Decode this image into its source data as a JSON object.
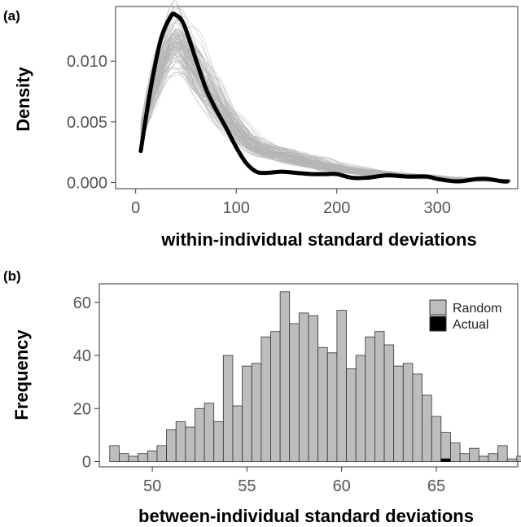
{
  "chart_data": [
    {
      "panel": "(a)",
      "type": "line",
      "xlabel": "within-individual standard deviations",
      "ylabel": "Density",
      "xlim": [
        -20,
        380
      ],
      "ylim": [
        -0.0005,
        0.0145
      ],
      "xticks": [
        0,
        100,
        200,
        300
      ],
      "xtick_labels": [
        "0",
        "100",
        "200",
        "300"
      ],
      "yticks": [
        0.0,
        0.005,
        0.01
      ],
      "ytick_labels": [
        "0.000",
        "0.005",
        "0.010"
      ],
      "grid": false,
      "colors": {
        "random": "#b4b4b4",
        "actual": "#000000"
      },
      "series": [
        {
          "role": "random-density-curves",
          "count": 100,
          "x": [
            5,
            20,
            40,
            60,
            80,
            100,
            120,
            150,
            180,
            200,
            240,
            280,
            300,
            330,
            350,
            370
          ],
          "y": [
            0.004,
            0.0085,
            0.0118,
            0.0095,
            0.0068,
            0.0045,
            0.003,
            0.0022,
            0.0016,
            0.0012,
            0.0008,
            0.0005,
            0.0004,
            0.0003,
            0.0002,
            0.0001
          ]
        },
        {
          "role": "actual-density-curve",
          "x": [
            5,
            15,
            25,
            35,
            40,
            48,
            60,
            70,
            80,
            90,
            100,
            110,
            120,
            130,
            145,
            160,
            175,
            190,
            200,
            215,
            230,
            250,
            270,
            290,
            300,
            320,
            340,
            350,
            365,
            370
          ],
          "y": [
            0.0026,
            0.0078,
            0.0118,
            0.0137,
            0.0138,
            0.013,
            0.0101,
            0.0077,
            0.006,
            0.0045,
            0.0029,
            0.0016,
            0.0009,
            0.0008,
            0.0009,
            0.0008,
            0.0007,
            0.0007,
            0.0007,
            0.0004,
            0.0004,
            0.0006,
            0.0005,
            0.0005,
            0.0003,
            0.0001,
            0.0003,
            0.0003,
            0.0001,
            0.0001
          ]
        }
      ]
    },
    {
      "panel": "(b)",
      "type": "bar",
      "xlabel": "between-individual standard deviations",
      "ylabel": "Frequency",
      "xlim": [
        47.2,
        69.3
      ],
      "ylim": [
        -2,
        67
      ],
      "xticks": [
        50,
        55,
        60,
        65
      ],
      "xtick_labels": [
        "50",
        "55",
        "60",
        "65"
      ],
      "yticks": [
        0,
        20,
        40,
        60
      ],
      "ytick_labels": [
        "0",
        "20",
        "40",
        "60"
      ],
      "grid": false,
      "bin_start": 47.75,
      "bin_width": 0.5,
      "legend": {
        "placement": "top-right",
        "entries": [
          "Random",
          "Actual"
        ]
      },
      "colors": {
        "random": "#bdbdbd",
        "actual": "#000000",
        "outline": "#333333"
      },
      "series": [
        {
          "name": "Random",
          "values": [
            6,
            3,
            2,
            3,
            4,
            6,
            12,
            15,
            13,
            20,
            22,
            15,
            40,
            21,
            36,
            37,
            47,
            49,
            64,
            52,
            56,
            55,
            43,
            41,
            57,
            35,
            40,
            47,
            49,
            44,
            36,
            37,
            33,
            25,
            17,
            11,
            7,
            3,
            5,
            2,
            3,
            6,
            1,
            2,
            1,
            2,
            0,
            0,
            2,
            0,
            0,
            0,
            2
          ]
        },
        {
          "name": "Actual",
          "values": [
            0,
            0,
            0,
            0,
            0,
            0,
            0,
            0,
            0,
            0,
            0,
            0,
            0,
            0,
            0,
            0,
            0,
            0,
            0,
            0,
            0,
            0,
            0,
            0,
            0,
            0,
            0,
            0,
            0,
            0,
            0,
            0,
            0,
            0,
            0,
            1,
            0,
            0,
            0,
            0,
            0,
            0,
            0,
            0,
            0,
            0,
            0,
            0,
            0,
            0,
            0,
            0,
            0
          ]
        }
      ]
    }
  ]
}
